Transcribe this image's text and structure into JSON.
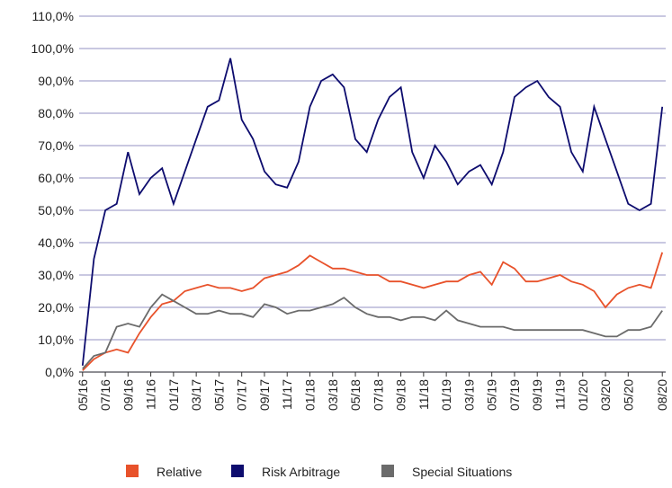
{
  "chart_data": {
    "type": "line",
    "x": [
      0,
      1,
      2,
      3,
      4,
      5,
      6,
      7,
      8,
      9,
      10,
      11,
      12,
      13,
      14,
      15,
      16,
      17,
      18,
      19,
      20,
      21,
      22,
      23,
      24,
      25,
      26,
      27,
      28,
      29,
      30,
      31,
      32,
      33,
      34,
      35,
      36,
      37,
      38,
      39,
      40,
      41,
      42,
      43,
      44,
      45,
      46,
      47,
      48,
      49,
      50,
      51
    ],
    "xlim": [
      -0.3,
      51.3
    ],
    "xticks": [
      {
        "value": 0,
        "label": "05/16"
      },
      {
        "value": 2,
        "label": "07/16"
      },
      {
        "value": 4,
        "label": "09/16"
      },
      {
        "value": 6,
        "label": "11/16"
      },
      {
        "value": 8,
        "label": "01/17"
      },
      {
        "value": 10,
        "label": "03/17"
      },
      {
        "value": 12,
        "label": "05/17"
      },
      {
        "value": 14,
        "label": "07/17"
      },
      {
        "value": 16,
        "label": "09/17"
      },
      {
        "value": 18,
        "label": "11/17"
      },
      {
        "value": 20,
        "label": "01/18"
      },
      {
        "value": 22,
        "label": "03/18"
      },
      {
        "value": 24,
        "label": "05/18"
      },
      {
        "value": 26,
        "label": "07/18"
      },
      {
        "value": 28,
        "label": "09/18"
      },
      {
        "value": 30,
        "label": "11/18"
      },
      {
        "value": 32,
        "label": "01/19"
      },
      {
        "value": 34,
        "label": "03/19"
      },
      {
        "value": 36,
        "label": "05/19"
      },
      {
        "value": 38,
        "label": "07/19"
      },
      {
        "value": 40,
        "label": "09/19"
      },
      {
        "value": 42,
        "label": "11/19"
      },
      {
        "value": 44,
        "label": "01/20"
      },
      {
        "value": 46,
        "label": "03/20"
      },
      {
        "value": 48,
        "label": "05/20"
      },
      {
        "value": 51,
        "label": "08/20"
      }
    ],
    "ylim": [
      0,
      110
    ],
    "yticks": [
      {
        "value": 0,
        "label": "0,0%"
      },
      {
        "value": 10,
        "label": "10,0%"
      },
      {
        "value": 20,
        "label": "20,0%"
      },
      {
        "value": 30,
        "label": "30,0%"
      },
      {
        "value": 40,
        "label": "40,0%"
      },
      {
        "value": 50,
        "label": "50,0%"
      },
      {
        "value": 60,
        "label": "60,0%"
      },
      {
        "value": 70,
        "label": "70,0%"
      },
      {
        "value": 80,
        "label": "80,0%"
      },
      {
        "value": 90,
        "label": "90,0%"
      },
      {
        "value": 100,
        "label": "100,0%"
      },
      {
        "value": 110,
        "label": "110,0%"
      }
    ],
    "grid": true,
    "legend": "bottom",
    "series": [
      {
        "name": "Relative",
        "color": "#e8522b",
        "values": [
          0.5,
          4,
          6,
          7,
          6,
          12,
          17,
          21,
          22,
          25,
          26,
          27,
          26,
          26,
          25,
          26,
          29,
          30,
          31,
          33,
          36,
          34,
          32,
          32,
          31,
          30,
          30,
          28,
          28,
          27,
          26,
          27,
          28,
          28,
          30,
          31,
          27,
          34,
          32,
          28,
          28,
          29,
          30,
          28,
          27,
          25,
          20,
          24,
          26,
          27,
          26,
          37
        ]
      },
      {
        "name": "Risk Arbitrage",
        "color": "#0d0c6e",
        "values": [
          2,
          35,
          50,
          52,
          68,
          55,
          60,
          63,
          52,
          62,
          72,
          82,
          84,
          97,
          78,
          72,
          62,
          58,
          57,
          65,
          82,
          90,
          92,
          88,
          72,
          68,
          78,
          85,
          88,
          68,
          60,
          70,
          65,
          58,
          62,
          64,
          58,
          68,
          85,
          88,
          90,
          85,
          82,
          68,
          62,
          82,
          72,
          62,
          52,
          50,
          52,
          82
        ]
      },
      {
        "name": "Special Situations",
        "color": "#6b6b6b",
        "values": [
          1,
          5,
          6,
          14,
          15,
          14,
          20,
          24,
          22,
          20,
          18,
          18,
          19,
          18,
          18,
          17,
          21,
          20,
          18,
          19,
          19,
          20,
          21,
          23,
          20,
          18,
          17,
          17,
          16,
          17,
          17,
          16,
          19,
          16,
          15,
          14,
          14,
          14,
          13,
          13,
          13,
          13,
          13,
          13,
          13,
          12,
          11,
          11,
          13,
          13,
          14,
          19
        ]
      }
    ]
  }
}
